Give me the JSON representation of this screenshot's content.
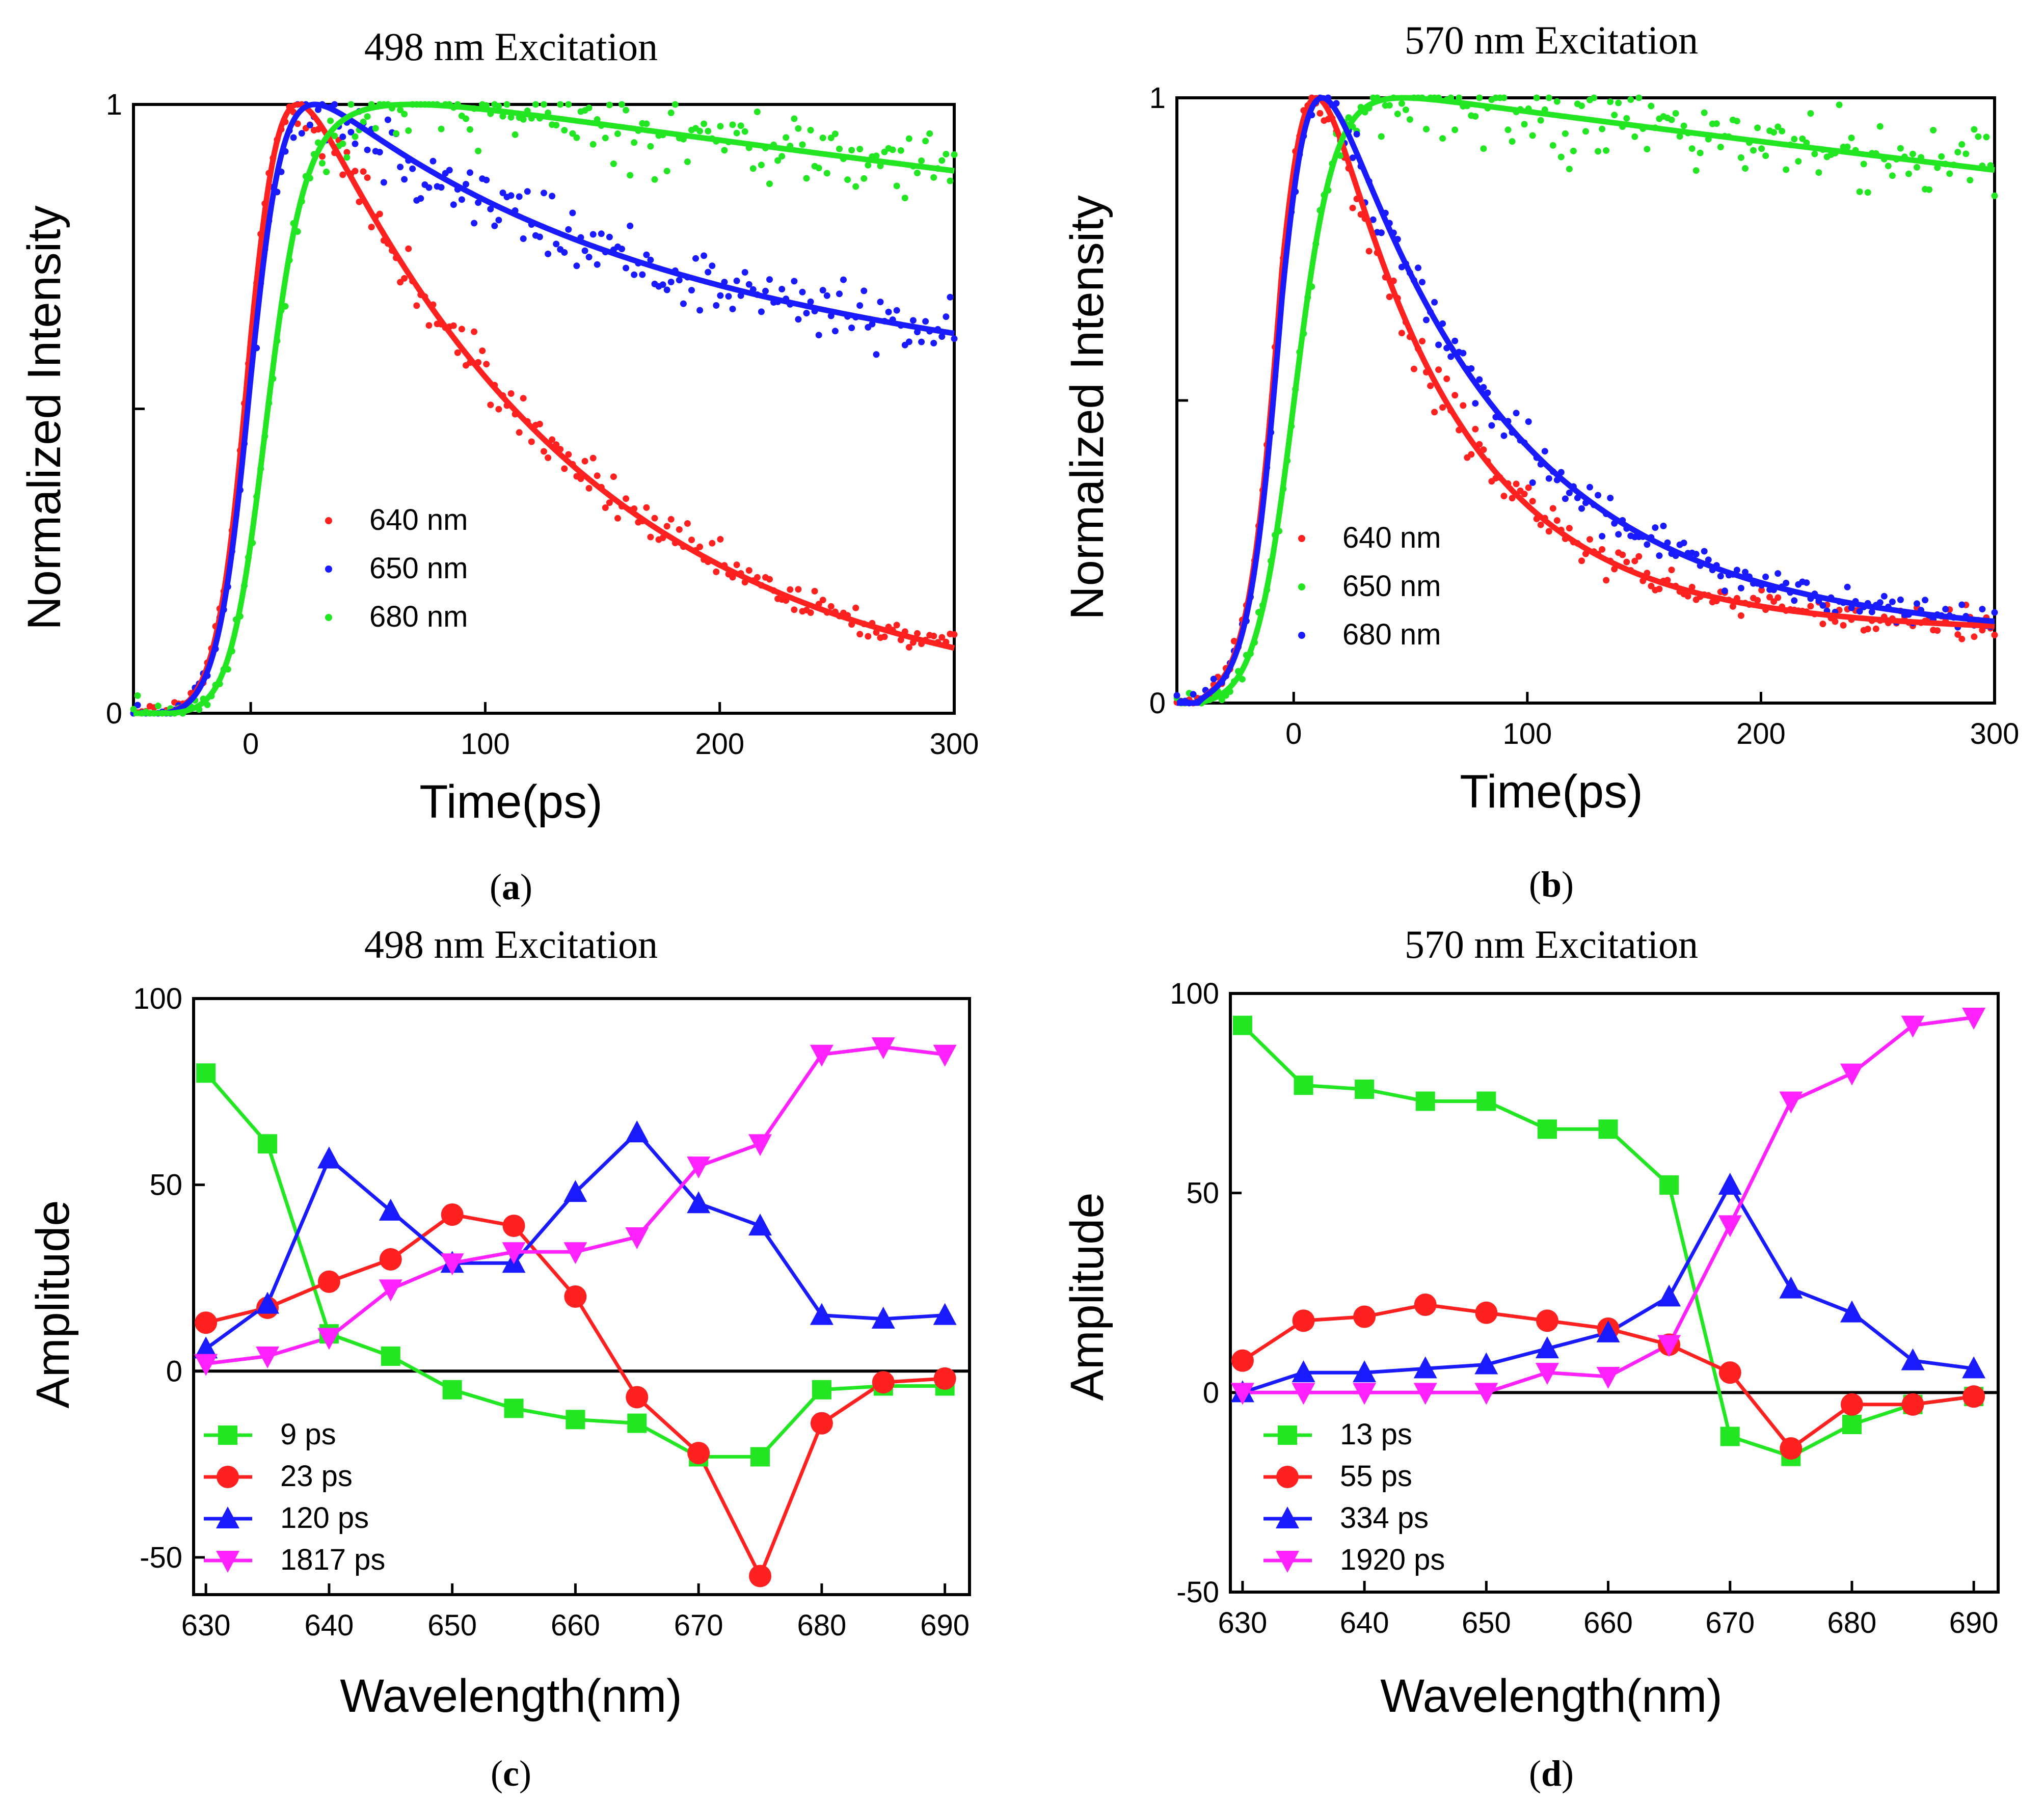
{
  "figure": {
    "background": "#ffffff",
    "palette": {
      "red": "#ff2020",
      "blue": "#1a1aff",
      "green": "#22e622",
      "magenta": "#ff22ff",
      "black": "#000000"
    }
  },
  "chart_data": [
    {
      "id": "a",
      "type": "scatter",
      "fit_model": "exp_decay",
      "title": "498 nm Excitation",
      "caption_letter": "a",
      "xlabel": "Time(ps)",
      "ylabel": "Normalized Intensity",
      "xlim": [
        -50,
        300
      ],
      "ylim": [
        0,
        1
      ],
      "xticks": [
        0,
        100,
        200,
        300
      ],
      "yticks": [
        0,
        0.5,
        1
      ],
      "yticklabels": {
        "0": "0",
        "1": "1"
      },
      "series": [
        {
          "name": "640 nm",
          "color": "#ff2020",
          "marker": "dot",
          "fit": {
            "t0": 0,
            "sigma": 12,
            "tau_rise": 9,
            "tau_decay": 122
          }
        },
        {
          "name": "650 nm",
          "color": "#1a1aff",
          "marker": "dot",
          "fit": {
            "t0": 0,
            "sigma": 12,
            "tau_rise": 9,
            "tau_decay": 120,
            "a_fast": 0.38,
            "tau_slow": 1817
          }
        },
        {
          "name": "680 nm",
          "color": "#22e622",
          "marker": "dot",
          "fit": {
            "t0": 5,
            "sigma": 13,
            "tau_rise": 23,
            "tau_decay": 1817
          }
        }
      ]
    },
    {
      "id": "b",
      "type": "scatter",
      "fit_model": "exp_decay",
      "title": "570 nm Excitation",
      "caption_letter": "b",
      "xlabel": "Time(ps)",
      "ylabel": "Normalized Intensity",
      "xlim": [
        -50,
        300
      ],
      "ylim": [
        0,
        1
      ],
      "xticks": [
        0,
        100,
        200,
        300
      ],
      "yticks": [
        0,
        0.5,
        1
      ],
      "yticklabels": {
        "0": "0",
        "1": "1"
      },
      "series": [
        {
          "name": "640 nm",
          "color": "#ff2020",
          "marker": "dot",
          "fit": {
            "t0": -5,
            "sigma": 12,
            "tau_rise": 2,
            "tau_decay": 55,
            "a_fast": 0.9,
            "tau_slow": 1920
          }
        },
        {
          "name": "650 nm",
          "color": "#22e622",
          "marker": "dot",
          "fit": {
            "t0": 0,
            "sigma": 14,
            "tau_rise": 13,
            "tau_decay": 1920
          }
        },
        {
          "name": "680 nm",
          "color": "#1a1aff",
          "marker": "dot",
          "fit": {
            "t0": -5,
            "sigma": 12,
            "tau_rise": 2,
            "tau_decay": 75,
            "a_fast": 0.9,
            "tau_slow": 1920
          }
        }
      ]
    },
    {
      "id": "c",
      "type": "line",
      "title": "498 nm Excitation",
      "caption_letter": "c",
      "xlabel": "Wavelength(nm)",
      "ylabel": "Amplitude",
      "xlim": [
        629,
        692
      ],
      "ylim": [
        -60,
        100
      ],
      "xticks": [
        630,
        640,
        650,
        660,
        670,
        680,
        690
      ],
      "yticks": [
        -50,
        0,
        50,
        100
      ],
      "zero_line": true,
      "x": [
        630,
        635,
        640,
        645,
        650,
        655,
        660,
        665,
        670,
        675,
        680,
        685,
        690
      ],
      "series": [
        {
          "name": "9 ps",
          "color": "#22e622",
          "marker": "square",
          "values": [
            80,
            61,
            10,
            4,
            -5,
            -10,
            -13,
            -14,
            -23,
            -23,
            -5,
            -4,
            -4
          ]
        },
        {
          "name": "23 ps",
          "color": "#ff2020",
          "marker": "circle",
          "values": [
            13,
            17,
            24,
            30,
            42,
            39,
            20,
            -7,
            -22,
            -55,
            -14,
            -3,
            -2
          ]
        },
        {
          "name": "120 ps",
          "color": "#1a1aff",
          "marker": "triangle-up",
          "values": [
            6,
            18,
            57,
            43,
            29,
            29,
            48,
            64,
            45,
            39,
            15,
            14,
            15
          ]
        },
        {
          "name": "1817 ps",
          "color": "#ff22ff",
          "marker": "triangle-down",
          "values": [
            2,
            4,
            9,
            22,
            29,
            32,
            32,
            36,
            55,
            61,
            85,
            87,
            85
          ]
        }
      ]
    },
    {
      "id": "d",
      "type": "line",
      "title": "570 nm Excitation",
      "caption_letter": "d",
      "xlabel": "Wavelength(nm)",
      "ylabel": "Amplitude",
      "xlim": [
        629,
        692
      ],
      "ylim": [
        -50,
        100
      ],
      "xticks": [
        630,
        640,
        650,
        660,
        670,
        680,
        690
      ],
      "yticks": [
        -50,
        0,
        50,
        100
      ],
      "zero_line": true,
      "x": [
        630,
        635,
        640,
        645,
        650,
        655,
        660,
        665,
        670,
        675,
        680,
        685,
        690
      ],
      "series": [
        {
          "name": "13 ps",
          "color": "#22e622",
          "marker": "square",
          "values": [
            92,
            77,
            76,
            73,
            73,
            66,
            66,
            52,
            -11,
            -16,
            -8,
            -3,
            -1
          ]
        },
        {
          "name": "55 ps",
          "color": "#ff2020",
          "marker": "circle",
          "values": [
            8,
            18,
            19,
            22,
            20,
            18,
            16,
            12,
            5,
            -14,
            -3,
            -3,
            -1
          ]
        },
        {
          "name": "334 ps",
          "color": "#1a1aff",
          "marker": "triangle-up",
          "values": [
            0,
            5,
            5,
            6,
            7,
            11,
            15,
            24,
            52,
            26,
            20,
            8,
            6
          ]
        },
        {
          "name": "1920 ps",
          "color": "#ff22ff",
          "marker": "triangle-down",
          "values": [
            0,
            0,
            0,
            0,
            0,
            5,
            4,
            12,
            42,
            73,
            80,
            92,
            94
          ]
        }
      ]
    }
  ]
}
